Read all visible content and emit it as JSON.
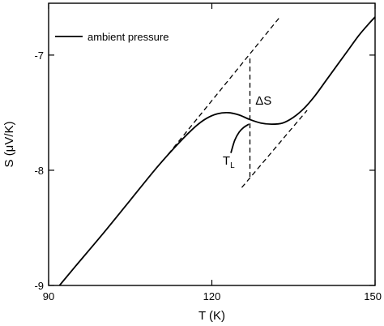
{
  "chart_data": {
    "type": "line",
    "title": "",
    "xlabel": "T (K)",
    "ylabel": "S (μV/K)",
    "xlim": [
      90,
      150
    ],
    "ylim": [
      -9,
      -6.55
    ],
    "x_ticks": [
      90,
      120,
      150
    ],
    "x_tick_labels": [
      "90",
      "120",
      "150"
    ],
    "y_ticks": [
      -9,
      -8,
      -7
    ],
    "y_tick_labels": [
      "-9",
      "-8",
      "-7"
    ],
    "legend": {
      "placement": "top-left",
      "entries": [
        "ambient pressure"
      ]
    },
    "grid": false,
    "series": [
      {
        "name": "ambient pressure",
        "style": "solid",
        "x": [
          92,
          95,
          100,
          105,
          110,
          114,
          117,
          119,
          121,
          123,
          125,
          127,
          129,
          131,
          133,
          135,
          137,
          139,
          141,
          143,
          145,
          147,
          149,
          150
        ],
        "y": [
          -9.0,
          -8.83,
          -8.55,
          -8.26,
          -7.97,
          -7.76,
          -7.62,
          -7.55,
          -7.51,
          -7.5,
          -7.52,
          -7.56,
          -7.59,
          -7.6,
          -7.59,
          -7.54,
          -7.46,
          -7.35,
          -7.22,
          -7.09,
          -6.96,
          -6.83,
          -6.72,
          -6.67
        ]
      },
      {
        "name": "TL branch",
        "style": "solid",
        "x": [
          123.5,
          124.2,
          125.0,
          125.8,
          126.8
        ],
        "y": [
          -7.85,
          -7.74,
          -7.67,
          -7.63,
          -7.6
        ]
      },
      {
        "name": "lower-T extrapolation",
        "style": "dashed",
        "x": [
          112,
          132.5
        ],
        "y": [
          -7.86,
          -6.67
        ]
      },
      {
        "name": "upper-T extrapolation",
        "style": "dashed",
        "x": [
          125.5,
          137.5
        ],
        "y": [
          -8.15,
          -7.48
        ]
      },
      {
        "name": "entropy jump",
        "style": "dashed",
        "x": [
          127,
          127
        ],
        "y": [
          -7.03,
          -8.08
        ]
      }
    ],
    "annotations": [
      {
        "text": "ΔS",
        "x": 128,
        "y": -7.43
      },
      {
        "text": "T",
        "subscript": "L",
        "x": 122,
        "y": -7.95
      }
    ]
  }
}
